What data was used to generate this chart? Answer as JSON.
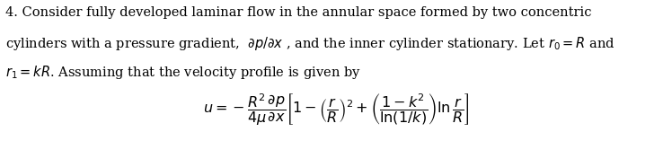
{
  "figsize": [
    7.48,
    1.57
  ],
  "dpi": 100,
  "background_color": "#ffffff",
  "text_color": "#000000",
  "font_size_body": 10.5,
  "font_size_eq": 11.5,
  "line1": "4. Consider fully developed laminar flow in the annular space formed by two concentric",
  "line2": "cylinders with a pressure gradient,  $\\partial p/\\partial x$ , and the inner cylinder stationary. Let $r_0 = R$ and",
  "line3": "$r_1 = kR$. Assuming that the velocity profile is given by",
  "equation": "$u = -\\dfrac{R^2}{4\\mu}\\dfrac{\\partial p}{\\partial x}\\left[1-\\left(\\dfrac{r}{R}\\right)^2+\\left(\\dfrac{1-k^2}{\\ln(1/k)}\\right)\\ln\\dfrac{r}{R}\\right]$"
}
